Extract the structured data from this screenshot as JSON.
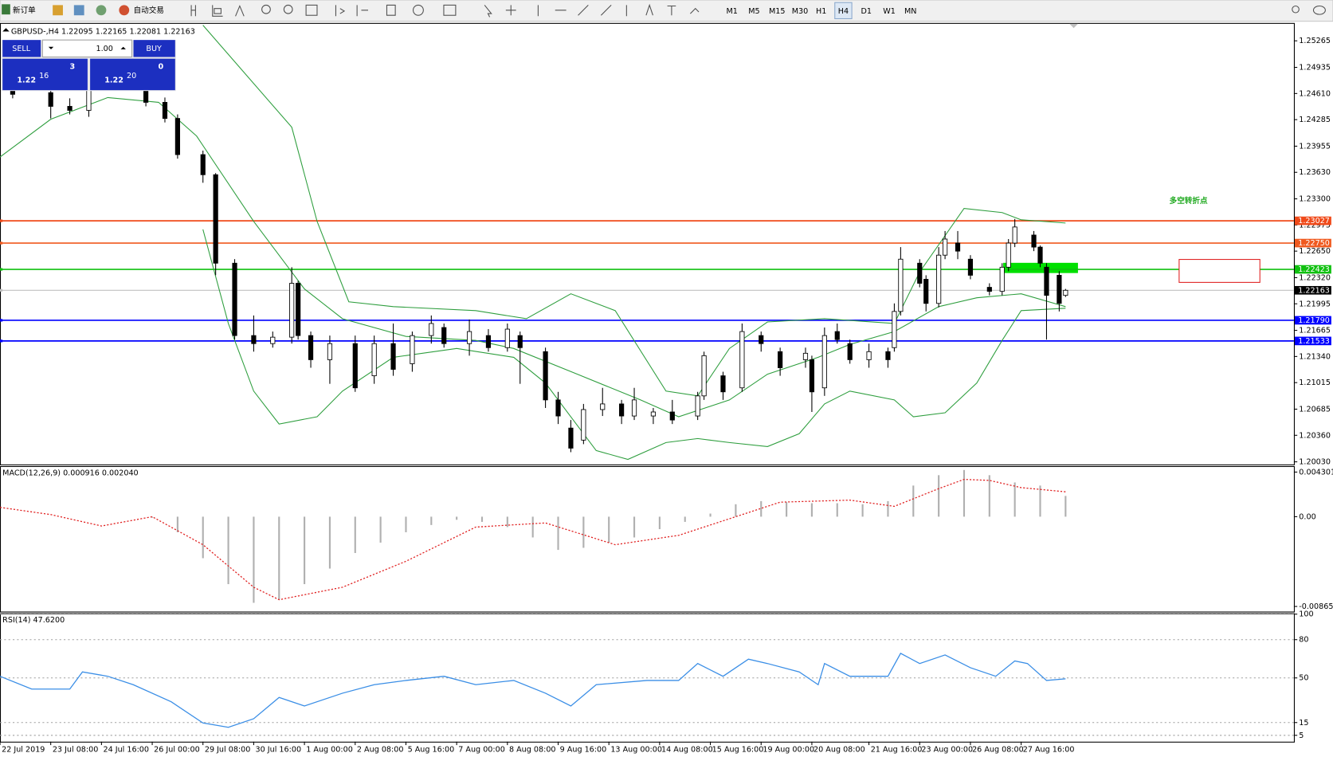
{
  "toolbar": {
    "new_order": "新订单",
    "auto_trading": "自动交易",
    "timeframes": [
      "M1",
      "M5",
      "M15",
      "M30",
      "H1",
      "H4",
      "D1",
      "W1",
      "MN"
    ]
  },
  "trade_panel": {
    "sell": "SELL",
    "lots": "1.00",
    "buy": "BUY",
    "bid_prefix": "1.22",
    "bid_big": "16",
    "bid_small": "3",
    "ask_prefix": "1.22",
    "ask_big": "20",
    "ask_small": "0"
  },
  "chart_data": [
    {
      "type": "candlestick",
      "title": "GBPUSD-,H4 1.22095 1.22165 1.22081 1.22163",
      "annotation": "多空转折点",
      "up_color": "#ffffff",
      "down_color": "#000000",
      "x": [
        1,
        7,
        10,
        13,
        22,
        25,
        27,
        31,
        33,
        36,
        39,
        42,
        45,
        46,
        48,
        51,
        55,
        58,
        61,
        64,
        67,
        69,
        73,
        76,
        79,
        81,
        85,
        87,
        89,
        91,
        94,
        97,
        99,
        102,
        105,
        109,
        110,
        113,
        116,
        119,
        122,
        126,
        127,
        129,
        131,
        133,
        136,
        139,
        140,
        141,
        144,
        145,
        147,
        148,
        150,
        152,
        155,
        157,
        158,
        159,
        162,
        163,
        164,
        166,
        167
      ],
      "open": [
        1.2465,
        1.2462,
        1.2445,
        1.244,
        1.2468,
        1.245,
        1.243,
        1.2385,
        1.236,
        1.225,
        1.216,
        1.215,
        1.2158,
        1.2225,
        1.216,
        1.213,
        1.215,
        1.211,
        1.215,
        1.2125,
        1.216,
        1.217,
        1.215,
        1.216,
        1.2145,
        1.216,
        1.214,
        1.208,
        1.2045,
        1.203,
        1.2068,
        1.2075,
        1.206,
        1.206,
        1.2065,
        1.206,
        1.2085,
        1.211,
        1.2095,
        1.216,
        1.214,
        1.213,
        1.213,
        1.2095,
        1.2165,
        1.215,
        1.213,
        1.214,
        1.2145,
        1.219,
        1.225,
        1.223,
        1.22,
        1.226,
        1.2275,
        1.2255,
        1.222,
        1.2215,
        1.2245,
        1.2275,
        1.2285,
        1.227,
        1.2245,
        1.2235,
        1.221
      ],
      "high": [
        1.2472,
        1.247,
        1.2455,
        1.2475,
        1.2472,
        1.2456,
        1.2435,
        1.239,
        1.2362,
        1.2255,
        1.2185,
        1.2165,
        1.2245,
        1.2228,
        1.2165,
        1.216,
        1.216,
        1.216,
        1.2175,
        1.2165,
        1.2185,
        1.2175,
        1.218,
        1.2168,
        1.2175,
        1.2165,
        1.2145,
        1.209,
        1.2055,
        1.2075,
        1.2095,
        1.208,
        1.2095,
        1.207,
        1.208,
        1.209,
        1.214,
        1.2115,
        1.2175,
        1.2165,
        1.2145,
        1.2145,
        1.2135,
        1.217,
        1.2175,
        1.2155,
        1.215,
        1.2145,
        1.22,
        1.227,
        1.2255,
        1.2235,
        1.227,
        1.229,
        1.229,
        1.226,
        1.2225,
        1.225,
        1.228,
        1.2305,
        1.229,
        1.2272,
        1.225,
        1.224,
        1.2218
      ],
      "low": [
        1.2455,
        1.243,
        1.2435,
        1.2432,
        1.2445,
        1.2425,
        1.238,
        1.235,
        1.2235,
        1.2155,
        1.214,
        1.2145,
        1.215,
        1.2155,
        1.212,
        1.21,
        1.209,
        1.21,
        1.211,
        1.2115,
        1.215,
        1.2145,
        1.2135,
        1.214,
        1.214,
        1.21,
        1.207,
        1.205,
        1.2015,
        1.2025,
        1.206,
        1.205,
        1.2055,
        1.205,
        1.205,
        1.2055,
        1.208,
        1.208,
        1.209,
        1.214,
        1.211,
        1.212,
        1.2065,
        1.2085,
        1.215,
        1.2125,
        1.212,
        1.212,
        1.214,
        1.2185,
        1.222,
        1.219,
        1.2195,
        1.2255,
        1.2255,
        1.223,
        1.221,
        1.221,
        1.224,
        1.227,
        1.2265,
        1.2245,
        1.2155,
        1.219,
        1.2208
      ],
      "close": [
        1.246,
        1.2445,
        1.244,
        1.2468,
        1.245,
        1.243,
        1.2385,
        1.236,
        1.225,
        1.216,
        1.215,
        1.2158,
        1.2225,
        1.216,
        1.213,
        1.215,
        1.2095,
        1.215,
        1.2118,
        1.216,
        1.2175,
        1.215,
        1.2165,
        1.2145,
        1.2168,
        1.2145,
        1.208,
        1.206,
        1.202,
        1.2068,
        1.2075,
        1.206,
        1.208,
        1.2065,
        1.2055,
        1.2085,
        1.2135,
        1.209,
        1.2165,
        1.215,
        1.212,
        1.2138,
        1.209,
        1.216,
        1.2155,
        1.213,
        1.214,
        1.213,
        1.219,
        1.2255,
        1.2225,
        1.22,
        1.226,
        1.228,
        1.2265,
        1.2235,
        1.2215,
        1.2245,
        1.2275,
        1.2295,
        1.227,
        1.225,
        1.221,
        1.22,
        1.22163
      ],
      "bands": [
        {
          "color": "#2e9e3e",
          "x": [
            31,
            45,
            49,
            54,
            61,
            74,
            82,
            89,
            96,
            104,
            109,
            114,
            120,
            129,
            140,
            144,
            151,
            157,
            160,
            167
          ],
          "values": [
            1.2546,
            1.2419,
            1.2302,
            1.2202,
            1.2196,
            1.2191,
            1.2181,
            1.2212,
            1.2191,
            1.2091,
            1.2085,
            1.2144,
            1.2177,
            1.2181,
            1.2175,
            1.2239,
            1.2318,
            1.2313,
            1.2304,
            1.23
          ]
        },
        {
          "color": "#2e9e3e",
          "x": [
            -1,
            7,
            16,
            24,
            30,
            39,
            47,
            53,
            63,
            74,
            80,
            90,
            100,
            106,
            114,
            120,
            128,
            133,
            140,
            147,
            153,
            160,
            167
          ],
          "values": [
            1.2382,
            1.2429,
            1.2456,
            1.245,
            1.2408,
            1.2302,
            1.2218,
            1.2181,
            1.2159,
            1.2154,
            1.2144,
            1.2112,
            1.208,
            1.2059,
            1.208,
            1.2112,
            1.2133,
            1.2149,
            1.2165,
            1.2196,
            1.2207,
            1.2212,
            1.2196
          ]
        },
        {
          "color": "#2e9e3e",
          "x": [
            31,
            35,
            39,
            43,
            49,
            53,
            61,
            71,
            80,
            85,
            93,
            98,
            104,
            109,
            114,
            120,
            125,
            129,
            133,
            140,
            143,
            148,
            153,
            157,
            160,
            167
          ],
          "values": [
            1.2292,
            1.2175,
            1.2091,
            1.205,
            1.2059,
            1.2091,
            1.2133,
            1.2144,
            1.2133,
            1.2101,
            1.2017,
            1.2006,
            1.2027,
            1.2032,
            1.2027,
            1.2022,
            1.2038,
            1.2075,
            1.2091,
            1.208,
            1.2059,
            1.2064,
            1.2101,
            1.2154,
            1.2191,
            1.2194
          ]
        }
      ],
      "levels": [
        {
          "value": 1.23027,
          "color": "#f04a1a"
        },
        {
          "value": 1.2275,
          "label": "1.22750",
          "color": "#f05a1f"
        },
        {
          "value": 1.22423,
          "color": "#10c010"
        },
        {
          "value": 1.2179,
          "label": "1.21790",
          "color": "#0000ff"
        },
        {
          "value": 1.21533,
          "color": "#0000ff"
        },
        {
          "value": 1.22163,
          "color": "#000000",
          "line_color": "#c0c0c0"
        }
      ],
      "xlim": [
        -1,
        203
      ],
      "ylim": [
        1.19998,
        1.25487
      ],
      "yticks": [
        1.25265,
        1.24935,
        {
          "value": 1.2461,
          "label": "1.24610"
        },
        1.24285,
        1.23955,
        {
          "value": 1.2363,
          "label": "1.23630"
        },
        {
          "value": 1.233,
          "label": "1.23300"
        },
        1.22975,
        {
          "value": 1.2265,
          "label": "1.22650"
        },
        {
          "value": 1.2232,
          "label": "1.22320"
        },
        1.21995,
        1.21665,
        {
          "value": 1.2134,
          "label": "1.21340"
        },
        1.21015,
        1.20685,
        {
          "value": 1.2036,
          "label": "1.20360"
        },
        {
          "value": 1.2003,
          "label": "1.20030"
        }
      ],
      "xticks": [
        {
          "value": -1,
          "label": "22 Jul 2019"
        },
        {
          "value": 7,
          "label": "23 Jul 08:00"
        },
        {
          "value": 15,
          "label": "24 Jul 16:00"
        },
        {
          "value": 23,
          "label": "26 Jul 00:00"
        },
        {
          "value": 31,
          "label": "29 Jul 08:00"
        },
        {
          "value": 39,
          "label": "30 Jul 16:00"
        },
        {
          "value": 47,
          "label": "1 Aug 00:00"
        },
        {
          "value": 55,
          "label": "2 Aug 08:00"
        },
        {
          "value": 63,
          "label": "5 Aug 16:00"
        },
        {
          "value": 71,
          "label": "7 Aug 00:00"
        },
        {
          "value": 79,
          "label": "8 Aug 08:00"
        },
        {
          "value": 87,
          "label": "9 Aug 16:00"
        },
        {
          "value": 95,
          "label": "13 Aug 00:00"
        },
        {
          "value": 103,
          "label": "14 Aug 08:00"
        },
        {
          "value": 111,
          "label": "15 Aug 16:00"
        },
        {
          "value": 119,
          "label": "19 Aug 00:00"
        },
        {
          "value": 127,
          "label": "20 Aug 08:00"
        },
        {
          "value": 136,
          "label": "21 Aug 16:00"
        },
        {
          "value": 144,
          "label": "23 Aug 00:00"
        },
        {
          "value": 152,
          "label": "26 Aug 08:00"
        },
        {
          "value": 160,
          "label": "27 Aug 16:00"
        }
      ]
    },
    {
      "type": "macd",
      "title": "MACD(12,26,9) 0.000916 0.002040",
      "histogram": {
        "color": "#b0b0b0",
        "x": [
          23,
          27,
          31,
          35,
          39,
          43,
          47,
          51,
          55,
          59,
          63,
          67,
          71,
          75,
          79,
          83,
          87,
          91,
          95,
          99,
          103,
          107,
          111,
          115,
          119,
          123,
          127,
          131,
          135,
          139,
          143,
          147,
          151,
          155,
          159,
          163,
          167
        ],
        "values": [
          -0.0001,
          -0.0015,
          -0.004,
          -0.0065,
          -0.0083,
          -0.008,
          -0.0065,
          -0.005,
          -0.0035,
          -0.0025,
          -0.0015,
          -0.0008,
          -0.0003,
          -0.0005,
          -0.001,
          -0.002,
          -0.0032,
          -0.003,
          -0.0025,
          -0.002,
          -0.0012,
          -0.0005,
          0.0003,
          0.0012,
          0.0015,
          0.0014,
          0.0013,
          0.0013,
          0.0012,
          0.0015,
          0.003,
          0.004,
          0.0045,
          0.004,
          0.0033,
          0.003,
          0.002
        ]
      },
      "signal": {
        "color": "#e02020",
        "x": [
          -1,
          7,
          15,
          23,
          31,
          39,
          43,
          53,
          63,
          74,
          85,
          96,
          106,
          114,
          122,
          133,
          140,
          147,
          151,
          155,
          160,
          167
        ],
        "values": [
          0.0009,
          0.0002,
          -0.0009,
          0,
          -0.0027,
          -0.0068,
          -0.008,
          -0.0068,
          -0.0043,
          -0.001,
          -0.0006,
          -0.0027,
          -0.0018,
          -0.0002,
          0.0014,
          0.0016,
          0.001,
          0.0027,
          0.0036,
          0.0035,
          0.0028,
          0.0024
        ]
      },
      "ylim": [
        -0.009143,
        0.004875
      ],
      "yticks": [
        0.004301,
        {
          "value": 0,
          "label": "0.00"
        },
        -0.008651
      ]
    },
    {
      "type": "line",
      "title": "RSI(14) 47.6200",
      "color": "#3a8ee6",
      "grid": true,
      "x": [
        -1,
        4,
        10,
        12,
        16,
        20,
        26,
        31,
        35,
        39,
        43,
        47,
        53,
        58,
        63,
        69,
        74,
        80,
        85,
        89,
        93,
        101,
        106,
        109,
        113,
        117,
        120,
        125,
        128,
        129,
        133,
        139,
        141,
        144,
        148,
        152,
        156,
        159,
        161,
        164,
        167
      ],
      "values": [
        51.3,
        41.3,
        41.3,
        54.7,
        51.3,
        44.7,
        31.3,
        14.7,
        11.3,
        18,
        34.7,
        28,
        38,
        44.7,
        48,
        51.3,
        44.7,
        48,
        38,
        28,
        44.7,
        48,
        48,
        61.3,
        51.3,
        64.7,
        61.3,
        54.7,
        44.7,
        61.3,
        51.3,
        51.3,
        69.3,
        61.3,
        68,
        58,
        51.3,
        63.3,
        61.3,
        48,
        49.3
      ],
      "ylim": [
        0,
        100.7
      ],
      "yticks": [
        100,
        80,
        50,
        15,
        5
      ]
    }
  ]
}
